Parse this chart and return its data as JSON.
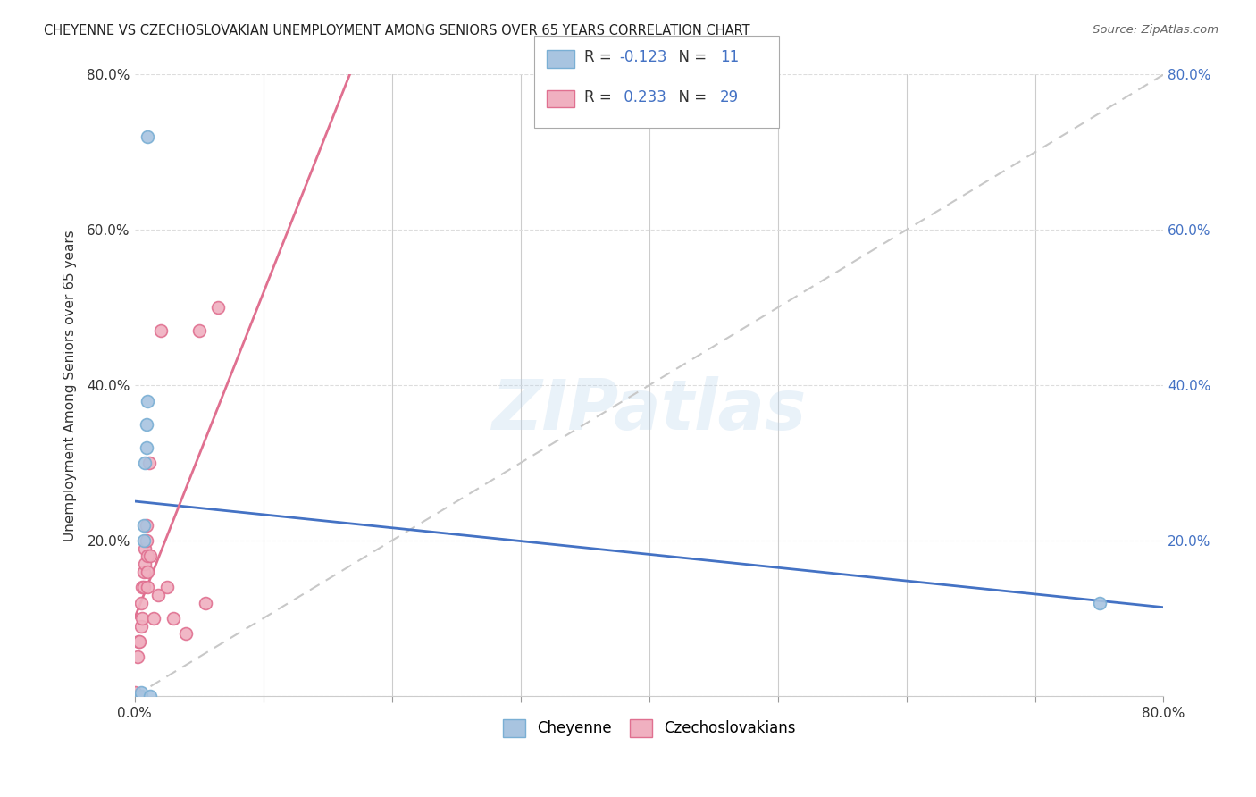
{
  "title": "CHEYENNE VS CZECHOSLOVAKIAN UNEMPLOYMENT AMONG SENIORS OVER 65 YEARS CORRELATION CHART",
  "source": "Source: ZipAtlas.com",
  "ylabel": "Unemployment Among Seniors over 65 years",
  "xlim": [
    0.0,
    0.8
  ],
  "ylim": [
    0.0,
    0.8
  ],
  "xtick_vals": [
    0.0,
    0.1,
    0.2,
    0.3,
    0.4,
    0.5,
    0.6,
    0.7,
    0.8
  ],
  "xtick_labels": [
    "0.0%",
    "",
    "",
    "",
    "",
    "",
    "",
    "",
    "80.0%"
  ],
  "ytick_vals": [
    0.0,
    0.2,
    0.4,
    0.6,
    0.8
  ],
  "ytick_labels_left": [
    "",
    "20.0%",
    "40.0%",
    "60.0%",
    "80.0%"
  ],
  "ytick_labels_right": [
    "20.0%",
    "40.0%",
    "60.0%",
    "80.0%"
  ],
  "cheyenne_color": "#a8c4e0",
  "cheyenne_edge_color": "#7aafd4",
  "czechoslovakian_color": "#f0b0c0",
  "czechoslovakian_edge_color": "#e07090",
  "trend_cheyenne_color": "#4472c4",
  "trend_czechoslovakian_color": "#e07090",
  "trend_dashed_color": "#c8c8c8",
  "R_cheyenne": -0.123,
  "N_cheyenne": 11,
  "R_czechoslovakian": 0.233,
  "N_czechoslovakian": 29,
  "cheyenne_x": [
    0.005,
    0.005,
    0.007,
    0.007,
    0.008,
    0.009,
    0.009,
    0.01,
    0.01,
    0.012,
    0.75
  ],
  "cheyenne_y": [
    0.0,
    0.005,
    0.2,
    0.22,
    0.3,
    0.32,
    0.35,
    0.38,
    0.72,
    0.0,
    0.12
  ],
  "czechoslovakian_x": [
    0.0,
    0.0,
    0.002,
    0.003,
    0.004,
    0.005,
    0.005,
    0.006,
    0.006,
    0.007,
    0.007,
    0.008,
    0.008,
    0.009,
    0.009,
    0.01,
    0.01,
    0.01,
    0.011,
    0.012,
    0.015,
    0.018,
    0.02,
    0.025,
    0.03,
    0.04,
    0.05,
    0.055,
    0.065
  ],
  "czechoslovakian_y": [
    0.0,
    0.005,
    0.05,
    0.07,
    0.07,
    0.09,
    0.12,
    0.1,
    0.14,
    0.14,
    0.16,
    0.17,
    0.19,
    0.2,
    0.22,
    0.14,
    0.16,
    0.18,
    0.3,
    0.18,
    0.1,
    0.13,
    0.47,
    0.14,
    0.1,
    0.08,
    0.47,
    0.12,
    0.5
  ],
  "watermark": "ZIPatlas",
  "marker_size": 100,
  "background_color": "#ffffff",
  "grid_color": "#dddddd"
}
